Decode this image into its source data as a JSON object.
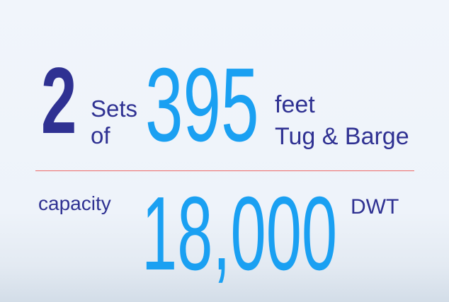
{
  "headline": {
    "count": "2",
    "sets_label": "Sets",
    "of_label": "of",
    "length": "395",
    "unit_label": "feet",
    "vessel_label": "Tug & Barge"
  },
  "capacity": {
    "label": "capacity",
    "value": "18,000",
    "unit": "DWT"
  },
  "colors": {
    "navy": "#2f3192",
    "blue": "#1aa0f2",
    "divider": "#ee6a6a"
  }
}
